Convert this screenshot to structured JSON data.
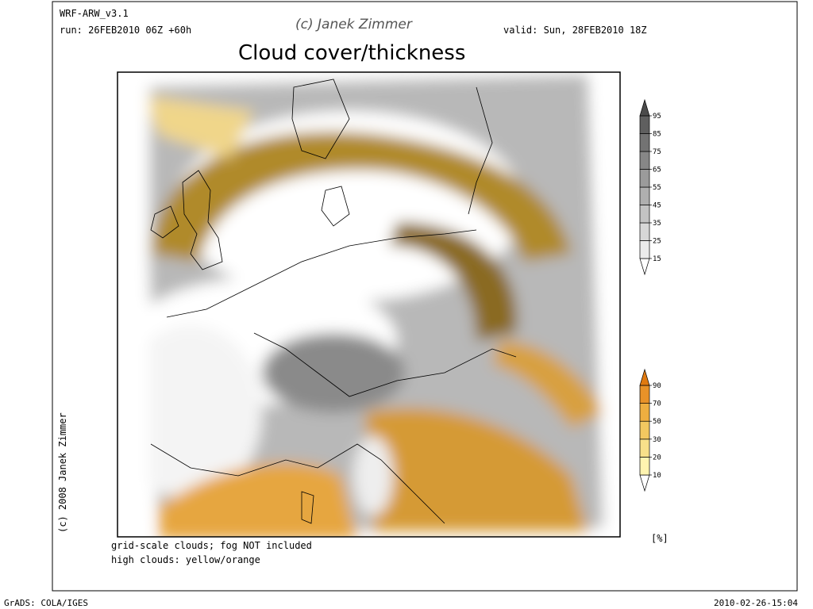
{
  "header": {
    "model": "WRF-ARW_v3.1",
    "run": "run: 26FEB2010 06Z +60h",
    "credit": "(c) Janek Zimmer",
    "valid": "valid: Sun, 28FEB2010 18Z",
    "title": "Cloud cover/thickness"
  },
  "side_credit": "(c) 2008 Janek Zimmer",
  "notes": [
    "grid-scale clouds; fog NOT included",
    "high clouds: yellow/orange"
  ],
  "legend": {
    "unit": "[%]",
    "gray": {
      "ticks": [
        15,
        25,
        35,
        45,
        55,
        65,
        75,
        85,
        95
      ],
      "colors": [
        "#ffffff",
        "#ebebeb",
        "#d7d7d7",
        "#c3c3c3",
        "#afafaf",
        "#9b9b9b",
        "#878787",
        "#737373",
        "#5f5f5f",
        "#4b4b4b"
      ]
    },
    "orange": {
      "ticks": [
        10,
        20,
        30,
        50,
        70,
        90
      ],
      "colors": [
        "#ffffff",
        "#fff4b0",
        "#f8e08a",
        "#f2c860",
        "#eeae40",
        "#e89228",
        "#e07a10"
      ]
    }
  },
  "footer": {
    "left": "GrADS: COLA/IGES",
    "right": "2010-02-26-15:04"
  }
}
